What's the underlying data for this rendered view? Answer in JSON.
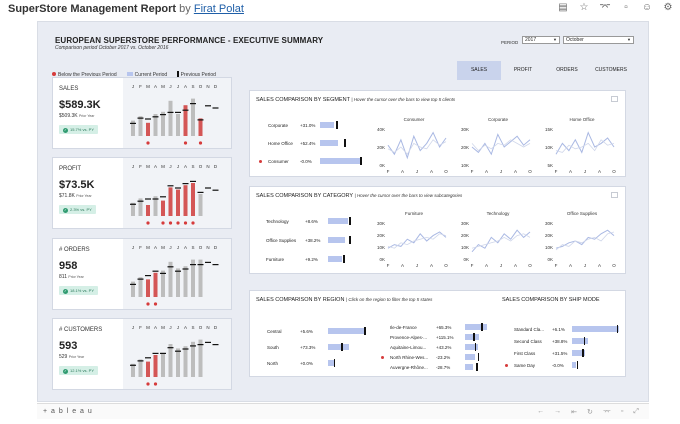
{
  "header": {
    "title": "SuperStore Management Report",
    "by": "by",
    "author": "Firat Polat"
  },
  "top_icons": [
    "share-view-icon",
    "star-icon",
    "share-icon",
    "comment-icon",
    "user-icon",
    "settings-icon"
  ],
  "dashboard": {
    "title": "EUROPEAN SUPERSTORE PERFORMANCE - EXECUTIVE SUMMARY",
    "subtitle": "Comparison period October 2017 vs. October 2016",
    "period_label": "PERIOD",
    "year": "2017",
    "month": "October",
    "legend": {
      "below": "Below the Previous Period",
      "current": "Current Period",
      "previous": "Previous Period"
    },
    "tabs": [
      "SALES",
      "PROFIT",
      "ORDERS",
      "CUSTOMERS"
    ],
    "active_tab": "SALES",
    "months": [
      "J",
      "F",
      "M",
      "A",
      "M",
      "J",
      "J",
      "A",
      "S",
      "O",
      "N",
      "D"
    ]
  },
  "kpis": [
    {
      "name": "SALES",
      "value": "$589.3K",
      "prior_value": "$509.3K",
      "prior_label": "Prior Year",
      "badge": "15.7% vs. PY",
      "bars": [
        0.35,
        0.45,
        0.3,
        0.5,
        0.55,
        0.8,
        0.5,
        0.7,
        0.85,
        0.4,
        0,
        0
      ],
      "prev": [
        0.3,
        0.42,
        0.4,
        0.45,
        0.5,
        0.55,
        0.55,
        0.6,
        0.75,
        0.38,
        0.7,
        0.65
      ],
      "below": [
        false,
        false,
        true,
        false,
        false,
        false,
        false,
        true,
        false,
        true,
        false,
        false
      ]
    },
    {
      "name": "PROFIT",
      "value": "$73.5K",
      "prior_value": "$71.8K",
      "prior_label": "Prior Year",
      "badge": "2.3% vs. PY",
      "bars": [
        0.3,
        0.4,
        0.25,
        0.45,
        0.35,
        0.65,
        0.6,
        0.7,
        0.75,
        0.5,
        0,
        0
      ],
      "prev": [
        0.28,
        0.35,
        0.4,
        0.4,
        0.45,
        0.7,
        0.65,
        0.75,
        0.8,
        0.55,
        0.65,
        0.6
      ],
      "below": [
        false,
        false,
        true,
        false,
        true,
        true,
        true,
        true,
        true,
        false,
        false,
        false
      ]
    },
    {
      "name": "# ORDERS",
      "value": "958",
      "prior_value": "811",
      "prior_label": "Prior Year",
      "badge": "18.1% vs. PY",
      "bars": [
        0.35,
        0.45,
        0.4,
        0.55,
        0.6,
        0.8,
        0.65,
        0.7,
        0.85,
        0.85,
        0,
        0
      ],
      "prev": [
        0.3,
        0.42,
        0.5,
        0.6,
        0.55,
        0.7,
        0.6,
        0.65,
        0.75,
        0.75,
        0.8,
        0.75
      ],
      "below": [
        false,
        false,
        true,
        true,
        false,
        false,
        false,
        false,
        false,
        false,
        false,
        false
      ]
    },
    {
      "name": "# CUSTOMERS",
      "value": "593",
      "prior_value": "529",
      "prior_label": "Prior Year",
      "badge": "12.1% vs. PY",
      "bars": [
        0.3,
        0.4,
        0.35,
        0.5,
        0.55,
        0.75,
        0.65,
        0.7,
        0.8,
        0.85,
        0,
        0
      ],
      "prev": [
        0.28,
        0.38,
        0.45,
        0.55,
        0.55,
        0.68,
        0.6,
        0.65,
        0.72,
        0.75,
        0.8,
        0.75
      ],
      "below": [
        false,
        false,
        true,
        true,
        false,
        false,
        false,
        false,
        false,
        false,
        false,
        false
      ]
    }
  ],
  "segment": {
    "title": "SALES COMPARISON BY SEGMENT",
    "hint": "| Hover the cursor over the bars to view top 5 clients",
    "rows": [
      {
        "label": "Corporate",
        "pct": "+31.0%",
        "value": 0.35,
        "prev": 0.4,
        "below": false
      },
      {
        "label": "Home Office",
        "pct": "+52.4%",
        "value": 0.45,
        "prev": 0.6,
        "below": false
      },
      {
        "label": "Consumer",
        "pct": "-0.0%",
        "value": 1.0,
        "prev": 1.0,
        "below": true
      }
    ],
    "sparks": [
      {
        "title": "Consumer",
        "ticks": [
          "40K",
          "20K",
          "0K"
        ]
      },
      {
        "title": "Corporate",
        "ticks": [
          "30K",
          "20K",
          "10K"
        ]
      },
      {
        "title": "Home Office",
        "ticks": [
          "15K",
          "10K",
          "5K"
        ]
      }
    ],
    "xticks": [
      "F",
      "A",
      "J",
      "A",
      "O"
    ]
  },
  "category": {
    "title": "SALES COMPARISON BY CATEGORY",
    "hint": "| Hover the cursor over the bars to view subcategories",
    "rows": [
      {
        "label": "Technology",
        "pct": "+8.6%",
        "value": 0.65,
        "prev": 0.7,
        "below": false
      },
      {
        "label": "Office Supplies",
        "pct": "+38.2%",
        "value": 0.55,
        "prev": 0.7,
        "below": false
      },
      {
        "label": "Furniture",
        "pct": "+9.2%",
        "value": 0.45,
        "prev": 0.5,
        "below": false
      }
    ],
    "sparks": [
      {
        "title": "Furniture",
        "ticks": [
          "30K",
          "20K",
          "10K",
          "0K"
        ]
      },
      {
        "title": "Technology",
        "ticks": [
          "30K",
          "20K",
          "10K",
          "0K"
        ]
      },
      {
        "title": "Office Supplies",
        "ticks": [
          "30K",
          "20K",
          "10K",
          "0K"
        ]
      }
    ],
    "xticks": [
      "F",
      "A",
      "J",
      "A",
      "O"
    ]
  },
  "region": {
    "title": "SALES COMPARISON BY REGION",
    "hint": "| Click on the region to filter the top 5 states",
    "rows": [
      {
        "label": "Central",
        "pct": "+5.6%",
        "value": 1.0,
        "prev": 0.96,
        "below": false
      },
      {
        "label": "South",
        "pct": "+73.3%",
        "value": 0.55,
        "prev": 0.35,
        "below": false
      },
      {
        "label": "North",
        "pct": "+0.0%",
        "value": 0.15,
        "prev": 0.15,
        "below": false
      }
    ],
    "states": [
      {
        "label": "Ile-de-France",
        "pct": "+65.3%",
        "value": 0.7,
        "prev": 0.5,
        "below": false
      },
      {
        "label": "Provence-Alpes-...",
        "pct": "+115.1%",
        "value": 0.45,
        "prev": 0.25,
        "below": false
      },
      {
        "label": "Aquitaine-Limou...",
        "pct": "+43.2%",
        "value": 0.4,
        "prev": 0.3,
        "below": false
      },
      {
        "label": "North Rhine-Wes...",
        "pct": "-23.2%",
        "value": 0.3,
        "prev": 0.4,
        "below": true
      },
      {
        "label": "Auvergne-Rhône...",
        "pct": "-28.7%",
        "value": 0.25,
        "prev": 0.35,
        "below": false
      }
    ]
  },
  "shipmode": {
    "title": "SALES COMPARISON BY SHIP MODE",
    "rows": [
      {
        "label": "Standard Cla...",
        "pct": "+6.1%",
        "value": 1.0,
        "prev": 0.95,
        "below": false
      },
      {
        "label": "Second Class",
        "pct": "+38.8%",
        "value": 0.35,
        "prev": 0.25,
        "below": false
      },
      {
        "label": "First Class",
        "pct": "+31.5%",
        "value": 0.28,
        "prev": 0.22,
        "below": false
      },
      {
        "label": "Same Day",
        "pct": "-0.0%",
        "value": 0.08,
        "prev": 0.1,
        "below": true
      }
    ]
  },
  "footer": {
    "logo": "+ a b l e a u",
    "icons": [
      "undo-icon",
      "redo-icon",
      "revert-icon",
      "refresh-icon",
      "share-icon",
      "comment-icon",
      "fullscreen-icon"
    ]
  }
}
